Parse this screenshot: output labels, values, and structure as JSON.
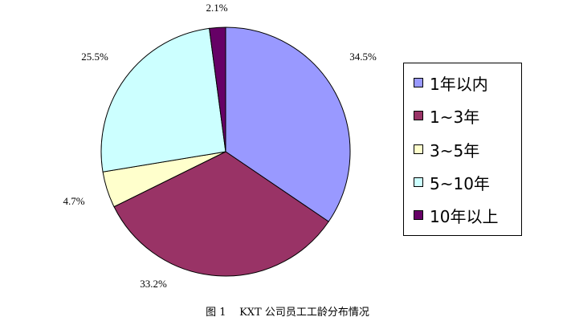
{
  "chart_data": {
    "type": "pie",
    "title": "",
    "categories": [
      "1年以内",
      "1~3年",
      "3~5年",
      "5~10年",
      "10年以上"
    ],
    "values": [
      34.5,
      33.2,
      4.7,
      25.5,
      2.1
    ],
    "labels": [
      "34.5%",
      "33.2%",
      "4.7%",
      "25.5%",
      "2.1%"
    ],
    "colors": [
      "#9999FF",
      "#993366",
      "#FFFFCC",
      "#CCFFFF",
      "#660066"
    ],
    "start_angle_deg": 0,
    "direction": "clockwise",
    "legend_position": "right"
  },
  "caption": "图 1    KXT 公司员工工龄分布情况"
}
